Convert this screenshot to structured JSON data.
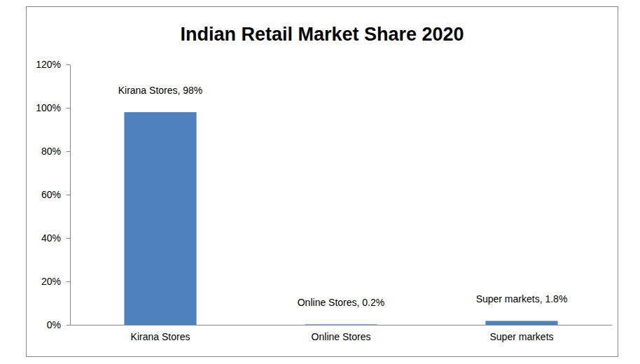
{
  "chart_data": {
    "type": "bar",
    "title": "Indian Retail Market Share 2020",
    "categories": [
      "Kirana Stores",
      "Online Stores",
      "Super markets"
    ],
    "values": [
      98,
      0.2,
      1.8
    ],
    "value_labels": [
      "Kirana Stores, 98%",
      "Online Stores, 0.2%",
      "Super markets, 1.8%"
    ],
    "color": "#4f81bd",
    "ylim": [
      0,
      120
    ],
    "yticks": [
      {
        "value": 0,
        "label": "0%"
      },
      {
        "value": 20,
        "label": "20%"
      },
      {
        "value": 40,
        "label": "40%"
      },
      {
        "value": 60,
        "label": "60%"
      },
      {
        "value": 80,
        "label": "80%"
      },
      {
        "value": 100,
        "label": "100%"
      },
      {
        "value": 120,
        "label": "120%"
      }
    ],
    "grid": false,
    "data_labels": true
  }
}
